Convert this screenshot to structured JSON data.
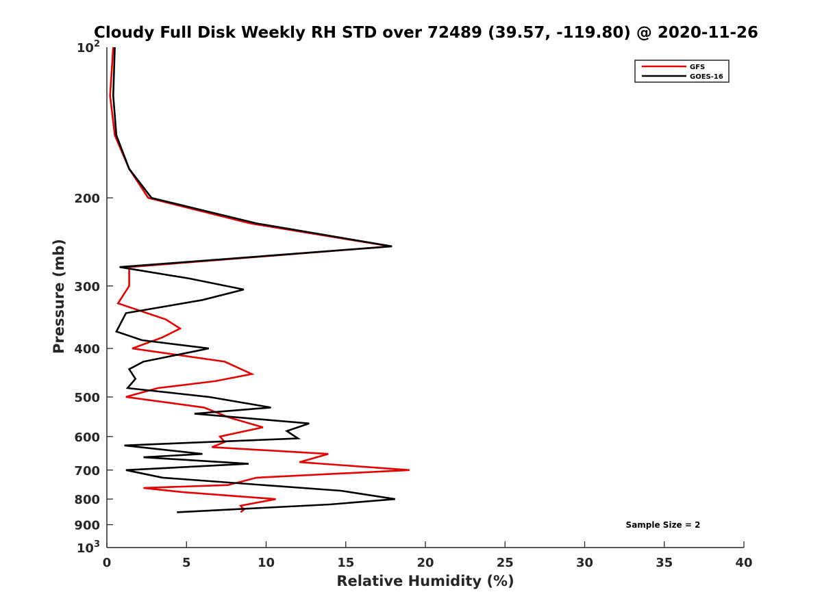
{
  "chart_data": {
    "type": "line",
    "title": "Cloudy Full Disk Weekly RH STD over 72489 (39.57, -119.80) @ 2020-11-26",
    "xlabel": "Relative Humidity (%)",
    "ylabel": "Pressure (mb)",
    "xlim": [
      0,
      40
    ],
    "ylim": [
      100,
      1000
    ],
    "yscale": "log",
    "y_reversed": true,
    "x_ticks": [
      {
        "value": 0,
        "label": "0"
      },
      {
        "value": 5,
        "label": "5"
      },
      {
        "value": 10,
        "label": "10"
      },
      {
        "value": 15,
        "label": "15"
      },
      {
        "value": 20,
        "label": "20"
      },
      {
        "value": 25,
        "label": "25"
      },
      {
        "value": 30,
        "label": "30"
      },
      {
        "value": 35,
        "label": "35"
      },
      {
        "value": 40,
        "label": "40"
      }
    ],
    "y_ticks": [
      {
        "value": 100,
        "label": "10",
        "sup": "2"
      },
      {
        "value": 200,
        "label": "200"
      },
      {
        "value": 300,
        "label": "300"
      },
      {
        "value": 400,
        "label": "400"
      },
      {
        "value": 500,
        "label": "500"
      },
      {
        "value": 600,
        "label": "600"
      },
      {
        "value": 700,
        "label": "700"
      },
      {
        "value": 800,
        "label": "800"
      },
      {
        "value": 900,
        "label": "900"
      },
      {
        "value": 1000,
        "label": "10",
        "sup": "3"
      }
    ],
    "legend_position": "top-right",
    "grid": false,
    "annotation": "Sample Size = 2",
    "series": [
      {
        "name": "GFS",
        "color": "#e60000",
        "points": [
          {
            "x": 0.4,
            "y": 100
          },
          {
            "x": 0.2,
            "y": 125
          },
          {
            "x": 0.5,
            "y": 150
          },
          {
            "x": 1.4,
            "y": 175
          },
          {
            "x": 2.6,
            "y": 200
          },
          {
            "x": 9.0,
            "y": 225
          },
          {
            "x": 17.8,
            "y": 250
          },
          {
            "x": 1.4,
            "y": 275
          },
          {
            "x": 1.4,
            "y": 300
          },
          {
            "x": 0.7,
            "y": 325
          },
          {
            "x": 3.7,
            "y": 350
          },
          {
            "x": 4.6,
            "y": 365
          },
          {
            "x": 3.5,
            "y": 380
          },
          {
            "x": 1.6,
            "y": 400
          },
          {
            "x": 7.4,
            "y": 425
          },
          {
            "x": 9.1,
            "y": 450
          },
          {
            "x": 6.8,
            "y": 465
          },
          {
            "x": 3.2,
            "y": 480
          },
          {
            "x": 1.2,
            "y": 500
          },
          {
            "x": 6.1,
            "y": 525
          },
          {
            "x": 7.7,
            "y": 550
          },
          {
            "x": 9.8,
            "y": 575
          },
          {
            "x": 7.1,
            "y": 600
          },
          {
            "x": 7.4,
            "y": 615
          },
          {
            "x": 6.6,
            "y": 630
          },
          {
            "x": 13.9,
            "y": 650
          },
          {
            "x": 12.1,
            "y": 675
          },
          {
            "x": 19.0,
            "y": 700
          },
          {
            "x": 9.4,
            "y": 725
          },
          {
            "x": 7.6,
            "y": 750
          },
          {
            "x": 2.3,
            "y": 760
          },
          {
            "x": 4.8,
            "y": 775
          },
          {
            "x": 10.6,
            "y": 800
          },
          {
            "x": 8.4,
            "y": 825
          },
          {
            "x": 8.6,
            "y": 840
          },
          {
            "x": 8.4,
            "y": 850
          }
        ]
      },
      {
        "name": "GOES-16",
        "color": "#000000",
        "points": [
          {
            "x": 0.5,
            "y": 100
          },
          {
            "x": 0.4,
            "y": 125
          },
          {
            "x": 0.6,
            "y": 150
          },
          {
            "x": 1.4,
            "y": 175
          },
          {
            "x": 2.8,
            "y": 200
          },
          {
            "x": 9.4,
            "y": 225
          },
          {
            "x": 17.9,
            "y": 250
          },
          {
            "x": 0.8,
            "y": 275
          },
          {
            "x": 5.2,
            "y": 290
          },
          {
            "x": 8.6,
            "y": 305
          },
          {
            "x": 6.0,
            "y": 320
          },
          {
            "x": 1.2,
            "y": 340
          },
          {
            "x": 0.6,
            "y": 370
          },
          {
            "x": 2.2,
            "y": 385
          },
          {
            "x": 6.4,
            "y": 400
          },
          {
            "x": 2.3,
            "y": 425
          },
          {
            "x": 1.4,
            "y": 440
          },
          {
            "x": 1.8,
            "y": 460
          },
          {
            "x": 1.3,
            "y": 480
          },
          {
            "x": 6.4,
            "y": 500
          },
          {
            "x": 10.3,
            "y": 525
          },
          {
            "x": 5.5,
            "y": 540
          },
          {
            "x": 12.7,
            "y": 565
          },
          {
            "x": 11.3,
            "y": 585
          },
          {
            "x": 12.0,
            "y": 605
          },
          {
            "x": 1.1,
            "y": 625
          },
          {
            "x": 6.0,
            "y": 650
          },
          {
            "x": 2.3,
            "y": 660
          },
          {
            "x": 8.9,
            "y": 680
          },
          {
            "x": 1.2,
            "y": 700
          },
          {
            "x": 3.5,
            "y": 725
          },
          {
            "x": 14.7,
            "y": 770
          },
          {
            "x": 18.1,
            "y": 800
          },
          {
            "x": 14.0,
            "y": 820
          },
          {
            "x": 4.4,
            "y": 850
          }
        ]
      }
    ]
  }
}
